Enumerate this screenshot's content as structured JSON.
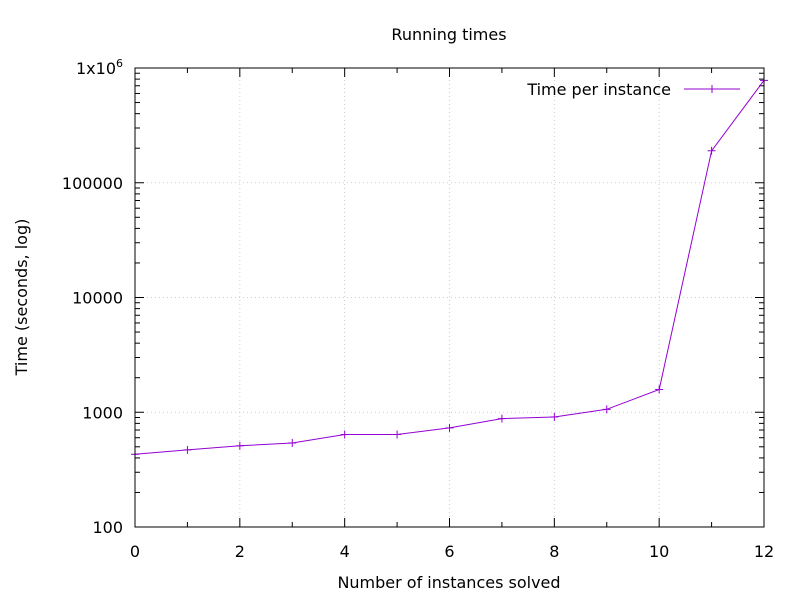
{
  "chart_data": {
    "type": "line",
    "title": "Running times",
    "xlabel": "Number of instances solved",
    "ylabel": "Time (seconds, log)",
    "xlim": [
      0,
      12
    ],
    "ylim": [
      100,
      1000000
    ],
    "y_scale": "log",
    "grid": true,
    "legend_position": "top-right",
    "xticks": [
      0,
      2,
      4,
      6,
      8,
      10,
      12
    ],
    "xtick_labels": [
      "0",
      "2",
      "4",
      "6",
      "8",
      "10",
      "12"
    ],
    "yticks": [
      100,
      1000,
      10000,
      100000,
      1000000
    ],
    "ytick_labels": [
      {
        "base": "100",
        "sup": ""
      },
      {
        "base": "1000",
        "sup": ""
      },
      {
        "base": "10000",
        "sup": ""
      },
      {
        "base": "100000",
        "sup": ""
      },
      {
        "base": "1x10",
        "sup": "6"
      }
    ],
    "series": [
      {
        "name": "Time per instance",
        "color": "#9400D3",
        "x": [
          0,
          1,
          2,
          3,
          4,
          5,
          6,
          7,
          8,
          9,
          10,
          11,
          12
        ],
        "y": [
          430,
          470,
          510,
          540,
          640,
          640,
          730,
          880,
          910,
          1060,
          1580,
          190000,
          780000
        ]
      }
    ]
  }
}
